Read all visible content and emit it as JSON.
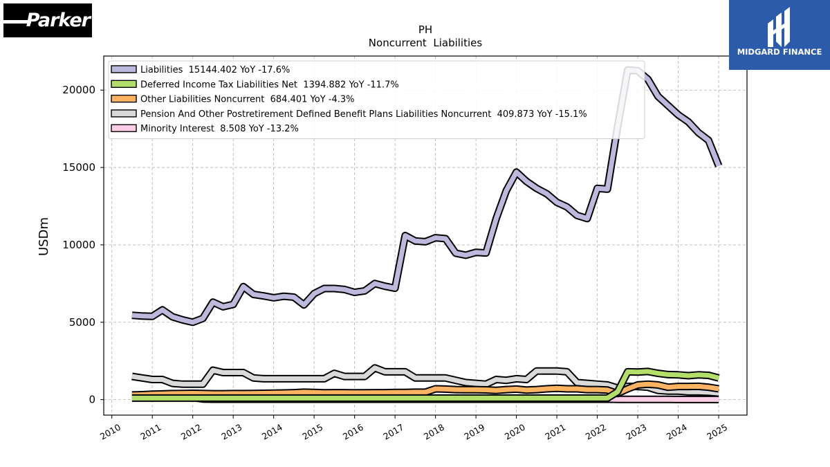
{
  "logos": {
    "left_text": "Parker",
    "right_text": "MIDGARD FINANCE"
  },
  "chart_data": {
    "type": "line",
    "title": "PH",
    "subtitle": "Noncurrent  Liabilities",
    "xlabel": "",
    "ylabel": "USDm",
    "xlim": [
      2009.8,
      2025.7
    ],
    "ylim": [
      -1000,
      22200
    ],
    "x_ticks": [
      "2010",
      "2011",
      "2012",
      "2013",
      "2014",
      "2015",
      "2016",
      "2017",
      "2018",
      "2019",
      "2020",
      "2021",
      "2022",
      "2023",
      "2024",
      "2025"
    ],
    "y_ticks": [
      0,
      5000,
      10000,
      15000,
      20000
    ],
    "grid": true,
    "legend_position": "top-left",
    "x": [
      2010.5,
      2010.75,
      2011.0,
      2011.25,
      2011.5,
      2011.75,
      2012.0,
      2012.25,
      2012.5,
      2012.75,
      2013.0,
      2013.25,
      2013.5,
      2013.75,
      2014.0,
      2014.25,
      2014.5,
      2014.75,
      2015.0,
      2015.25,
      2015.5,
      2015.75,
      2016.0,
      2016.25,
      2016.5,
      2016.75,
      2017.0,
      2017.25,
      2017.5,
      2017.75,
      2018.0,
      2018.25,
      2018.5,
      2018.75,
      2019.0,
      2019.25,
      2019.5,
      2019.75,
      2020.0,
      2020.25,
      2020.5,
      2020.75,
      2021.0,
      2021.25,
      2021.5,
      2021.75,
      2022.0,
      2022.25,
      2022.5,
      2022.75,
      2023.0,
      2023.25,
      2023.5,
      2023.75,
      2024.0,
      2024.25,
      2024.5,
      2024.75,
      2025.0
    ],
    "series": [
      {
        "name": "Liabilities",
        "legend": "Liabilities  15144.402 YoY -17.6%",
        "color": "#bcb9dc",
        "values": [
          5450,
          5400,
          5380,
          5800,
          5350,
          5150,
          5000,
          5250,
          6300,
          6000,
          6150,
          7300,
          6800,
          6700,
          6580,
          6680,
          6620,
          6120,
          6850,
          7180,
          7180,
          7120,
          6930,
          7030,
          7500,
          7330,
          7200,
          10600,
          10250,
          10200,
          10460,
          10400,
          9460,
          9330,
          9520,
          9480,
          11700,
          13500,
          14700,
          14100,
          13650,
          13300,
          12750,
          12450,
          11900,
          11700,
          13650,
          13600,
          17600,
          21300,
          21250,
          20700,
          19600,
          19000,
          18400,
          17950,
          17250,
          16750,
          15100
        ]
      },
      {
        "name": "Deferred Income Tax Liabilities Net",
        "legend": "Deferred Income Tax Liabilities Net  1394.882 YoY -11.7%",
        "color": "#b3de69",
        "values": [
          100,
          100,
          100,
          100,
          100,
          100,
          100,
          100,
          100,
          100,
          100,
          100,
          100,
          100,
          100,
          100,
          100,
          100,
          100,
          100,
          100,
          100,
          100,
          100,
          100,
          100,
          100,
          100,
          100,
          100,
          100,
          100,
          100,
          100,
          100,
          100,
          100,
          100,
          100,
          100,
          100,
          100,
          100,
          100,
          100,
          100,
          100,
          100,
          500,
          1800,
          1780,
          1820,
          1700,
          1620,
          1600,
          1550,
          1600,
          1570,
          1400
        ]
      },
      {
        "name": "Other Liabilities Noncurrent",
        "legend": "Other Liabilities Noncurrent  684.401 YoY -4.3%",
        "color": "#fdb462",
        "values": [
          300,
          320,
          350,
          370,
          390,
          400,
          410,
          400,
          380,
          380,
          390,
          390,
          400,
          410,
          420,
          430,
          450,
          480,
          460,
          440,
          450,
          450,
          440,
          440,
          450,
          450,
          460,
          460,
          480,
          480,
          700,
          680,
          650,
          640,
          640,
          630,
          600,
          650,
          680,
          620,
          650,
          700,
          730,
          700,
          700,
          650,
          650,
          620,
          400,
          700,
          950,
          1000,
          950,
          800,
          850,
          850,
          860,
          800,
          700
        ]
      },
      {
        "name": "Pension And Other Postretirement Defined Benefit Plans Liabilities Noncurrent",
        "legend": "Pension And Other Postretirement Defined Benefit Plans Liabilities Noncurrent  409.873 YoY -15.1%",
        "color": "#d9d9d9",
        "values": [
          1500,
          1400,
          1300,
          1300,
          1050,
          1000,
          1000,
          1000,
          1900,
          1750,
          1750,
          1750,
          1400,
          1350,
          1350,
          1350,
          1350,
          1350,
          1350,
          1350,
          1700,
          1500,
          1500,
          1500,
          2050,
          1800,
          1800,
          1800,
          1400,
          1400,
          1400,
          1400,
          1250,
          1100,
          1050,
          1000,
          1300,
          1250,
          1350,
          1300,
          1850,
          1850,
          1850,
          1800,
          1100,
          1050,
          1000,
          950,
          750,
          850,
          850,
          800,
          600,
          550,
          550,
          500,
          500,
          480,
          420
        ]
      },
      {
        "name": "Minority Interest",
        "legend": "Minority Interest  8.508 YoY -13.2%",
        "color": "#fccde5",
        "values": [
          160,
          160,
          160,
          160,
          160,
          150,
          140,
          40,
          30,
          30,
          30,
          30,
          30,
          30,
          30,
          30,
          30,
          30,
          30,
          30,
          30,
          30,
          30,
          30,
          30,
          30,
          30,
          30,
          30,
          30,
          30,
          30,
          30,
          30,
          30,
          30,
          30,
          30,
          30,
          30,
          30,
          30,
          30,
          30,
          30,
          30,
          30,
          30,
          20,
          20,
          20,
          15,
          15,
          15,
          12,
          10,
          10,
          10,
          9
        ]
      }
    ]
  }
}
